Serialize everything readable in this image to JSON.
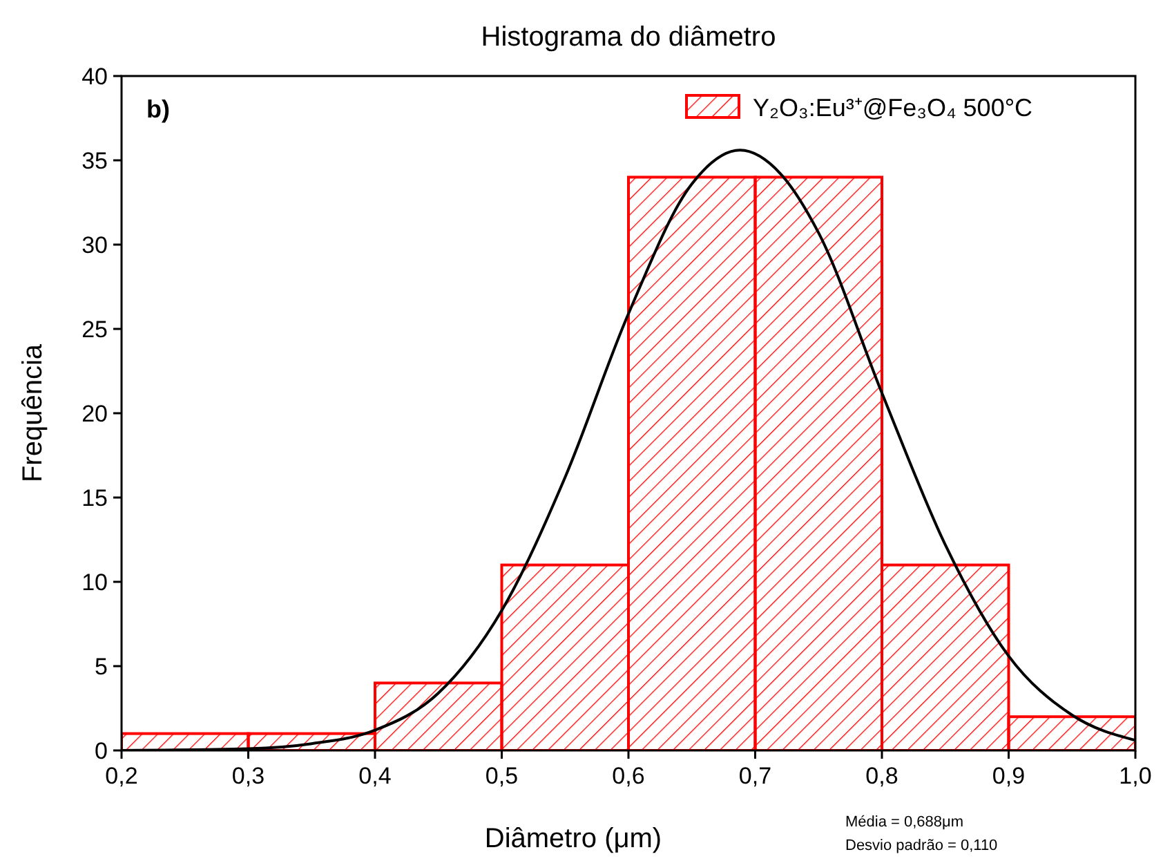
{
  "chart_data": {
    "type": "histogram",
    "title": "Histograma do diâmetro",
    "xlabel": "Diâmetro (μm)",
    "ylabel": "Frequência",
    "bins": [
      0.2,
      0.3,
      0.4,
      0.5,
      0.6,
      0.7,
      0.8,
      0.9,
      1.0
    ],
    "series": [
      {
        "type": "histogram",
        "name": "Y₂O₃:Eu³⁺@Fe₃O₄ 500°C",
        "color": "#ff0000",
        "values": [
          1,
          1,
          4,
          11,
          34,
          34,
          11,
          2
        ]
      },
      {
        "type": "line",
        "color": "#000000",
        "x": [
          0.2,
          0.3,
          0.35,
          0.4,
          0.45,
          0.5,
          0.55,
          0.6,
          0.65,
          0.688,
          0.72,
          0.75,
          0.8,
          0.85,
          0.9,
          0.95,
          1.0
        ],
        "values": [
          0.0,
          0.1,
          0.4,
          1.2,
          3.4,
          8.3,
          16.2,
          25.9,
          33.6,
          35.6,
          34.2,
          30.7,
          21.2,
          12.2,
          5.6,
          2.1,
          0.6
        ]
      }
    ],
    "xlim": [
      0.2,
      1.0
    ],
    "xticks": [
      {
        "value": 0.2,
        "label": "0,2"
      },
      {
        "value": 0.3,
        "label": "0,3"
      },
      {
        "value": 0.4,
        "label": "0,4"
      },
      {
        "value": 0.5,
        "label": "0,5"
      },
      {
        "value": 0.6,
        "label": "0,6"
      },
      {
        "value": 0.7,
        "label": "0,7"
      },
      {
        "value": 0.8,
        "label": "0,8"
      },
      {
        "value": 0.9,
        "label": "0,9"
      },
      {
        "value": 1.0,
        "label": "1,0"
      }
    ],
    "ylim": [
      0,
      40
    ],
    "yticks": [
      0,
      5,
      10,
      15,
      20,
      25,
      30,
      35,
      40
    ],
    "legend": "top right",
    "annotations": [
      "b)",
      "Média = 0,688μm",
      "Desvio padrão = 0,110"
    ]
  }
}
